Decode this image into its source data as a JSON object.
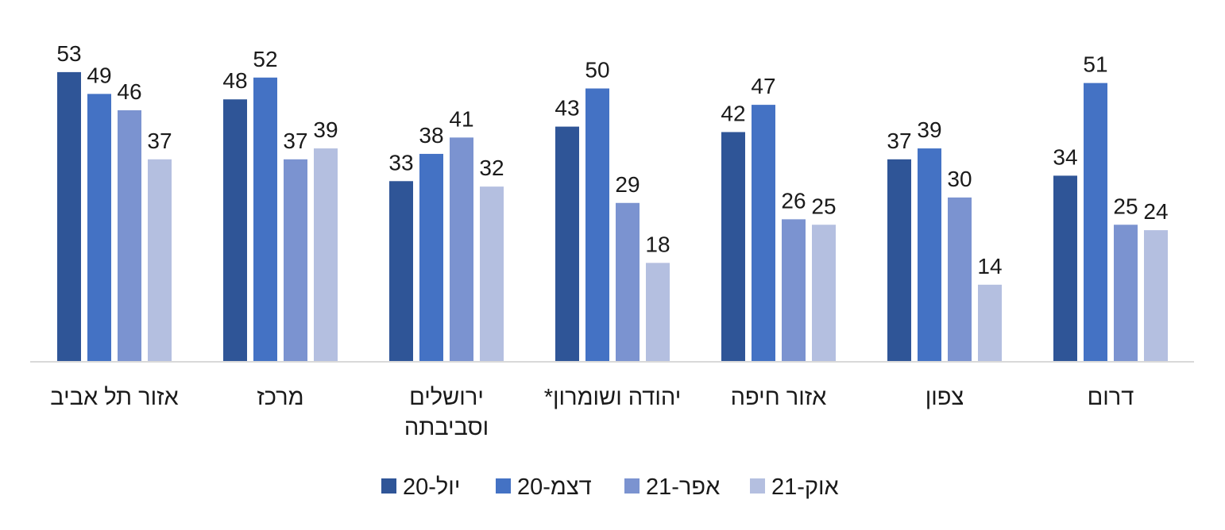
{
  "chart_data": {
    "type": "bar",
    "title": "",
    "xlabel": "",
    "ylabel": "",
    "ylim": [
      0,
      60
    ],
    "grid": false,
    "legend_position": "bottom",
    "categories": [
      [
        "אזור תל אביב"
      ],
      [
        "מרכז"
      ],
      [
        "ירושלים",
        "וסביבתה"
      ],
      [
        "יהודה ושומרון*"
      ],
      [
        "אזור חיפה"
      ],
      [
        "צפון"
      ],
      [
        "דרום"
      ]
    ],
    "series": [
      {
        "name": "יול-20",
        "color": "#2F5597",
        "values": [
          53,
          48,
          33,
          43,
          42,
          37,
          34
        ]
      },
      {
        "name": "דצמ-20",
        "color": "#4472C4",
        "values": [
          49,
          52,
          38,
          50,
          47,
          39,
          51
        ]
      },
      {
        "name": "אפר-21",
        "color": "#7B93D0",
        "values": [
          46,
          37,
          41,
          29,
          26,
          30,
          25
        ]
      },
      {
        "name": "אוק-21",
        "color": "#B4BFE0",
        "values": [
          37,
          39,
          32,
          18,
          25,
          14,
          24
        ]
      }
    ]
  },
  "colors": {
    "axis": "#D9D9D9",
    "text": "#1a1a1a"
  }
}
